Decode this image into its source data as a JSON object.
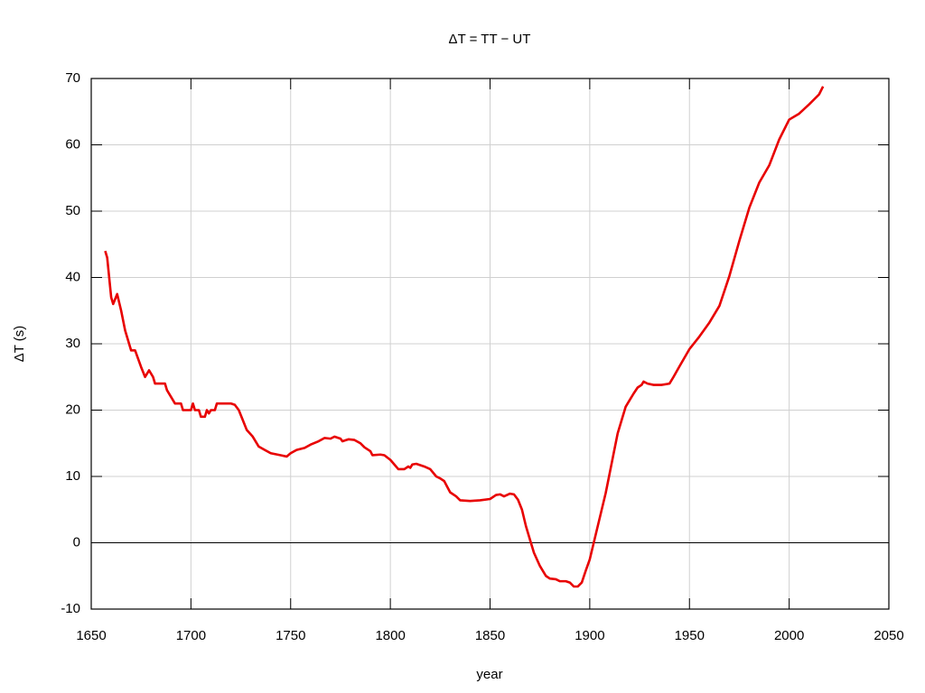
{
  "chart_data": {
    "type": "line",
    "title": "ΔT = TT − UT",
    "xlabel": "year",
    "ylabel": "ΔT (s)",
    "x": [
      1657,
      1658,
      1659,
      1660,
      1661,
      1663,
      1665,
      1667,
      1669,
      1670,
      1672,
      1675,
      1677,
      1679,
      1681,
      1682,
      1687,
      1688,
      1690,
      1692,
      1695,
      1696,
      1700,
      1701,
      1702,
      1704,
      1705,
      1707,
      1708,
      1709,
      1710,
      1712,
      1713,
      1720,
      1722,
      1724,
      1726,
      1728,
      1731,
      1734,
      1737,
      1740,
      1745,
      1748,
      1750,
      1753,
      1757,
      1760,
      1764,
      1767,
      1770,
      1772,
      1775,
      1776,
      1779,
      1782,
      1785,
      1787,
      1790,
      1791,
      1795,
      1797,
      1800,
      1802,
      1804,
      1807,
      1809,
      1810,
      1811,
      1813,
      1815,
      1817,
      1820,
      1823,
      1825,
      1827,
      1830,
      1833,
      1835,
      1840,
      1845,
      1850,
      1853,
      1855,
      1857,
      1860,
      1862,
      1864,
      1866,
      1868,
      1870,
      1872,
      1875,
      1878,
      1880,
      1883,
      1885,
      1888,
      1890,
      1892,
      1894,
      1896,
      1898,
      1900,
      1902,
      1904,
      1906,
      1908,
      1910,
      1912,
      1914,
      1916,
      1918,
      1920,
      1922,
      1924,
      1926,
      1927,
      1929,
      1932,
      1936,
      1940,
      1942,
      1945,
      1950,
      1955,
      1960,
      1965,
      1970,
      1975,
      1980,
      1985,
      1990,
      1995,
      2000,
      2005,
      2010,
      2015,
      2017
    ],
    "values": [
      44,
      43,
      40,
      37,
      36,
      37.5,
      35,
      32,
      30,
      29,
      29,
      26.5,
      25,
      26,
      25,
      24,
      24,
      23,
      22,
      21,
      21,
      20,
      20,
      21,
      20,
      20,
      19,
      19,
      20,
      19.5,
      20,
      20,
      21,
      21,
      20.8,
      20,
      18.5,
      17,
      16,
      14.5,
      14,
      13.5,
      13.2,
      13,
      13.5,
      14,
      14.3,
      14.8,
      15.3,
      15.8,
      15.7,
      16,
      15.7,
      15.3,
      15.6,
      15.5,
      15,
      14.4,
      13.8,
      13.2,
      13.3,
      13.2,
      12.5,
      11.8,
      11.1,
      11.1,
      11.5,
      11.3,
      11.8,
      11.9,
      11.7,
      11.5,
      11.1,
      10,
      9.7,
      9.3,
      7.6,
      7,
      6.4,
      6.3,
      6.4,
      6.6,
      7.2,
      7.3,
      7,
      7.4,
      7.3,
      6.5,
      5,
      2.5,
      0.5,
      -1.5,
      -3.5,
      -5,
      -5.4,
      -5.5,
      -5.8,
      -5.8,
      -6,
      -6.6,
      -6.6,
      -6,
      -4.2,
      -2.5,
      0,
      2.5,
      5,
      7.5,
      10.5,
      13.5,
      16.5,
      18.5,
      20.5,
      21.5,
      22.5,
      23.4,
      23.8,
      24.3,
      24,
      23.8,
      23.8,
      24,
      25,
      26.6,
      29.2,
      31.1,
      33.2,
      35.7,
      40.2,
      45.5,
      50.5,
      54.3,
      56.9,
      60.8,
      63.8,
      64.7,
      66.1,
      67.6,
      68.8
    ],
    "color": "#e80000",
    "xlim": [
      1650,
      2050
    ],
    "xticks": [
      1650,
      1700,
      1750,
      1800,
      1850,
      1900,
      1950,
      2000,
      2050
    ],
    "ylim": [
      -10,
      70
    ],
    "yticks": [
      -10,
      0,
      10,
      20,
      30,
      40,
      50,
      60,
      70
    ],
    "grid": true,
    "zeroaxis": true
  }
}
